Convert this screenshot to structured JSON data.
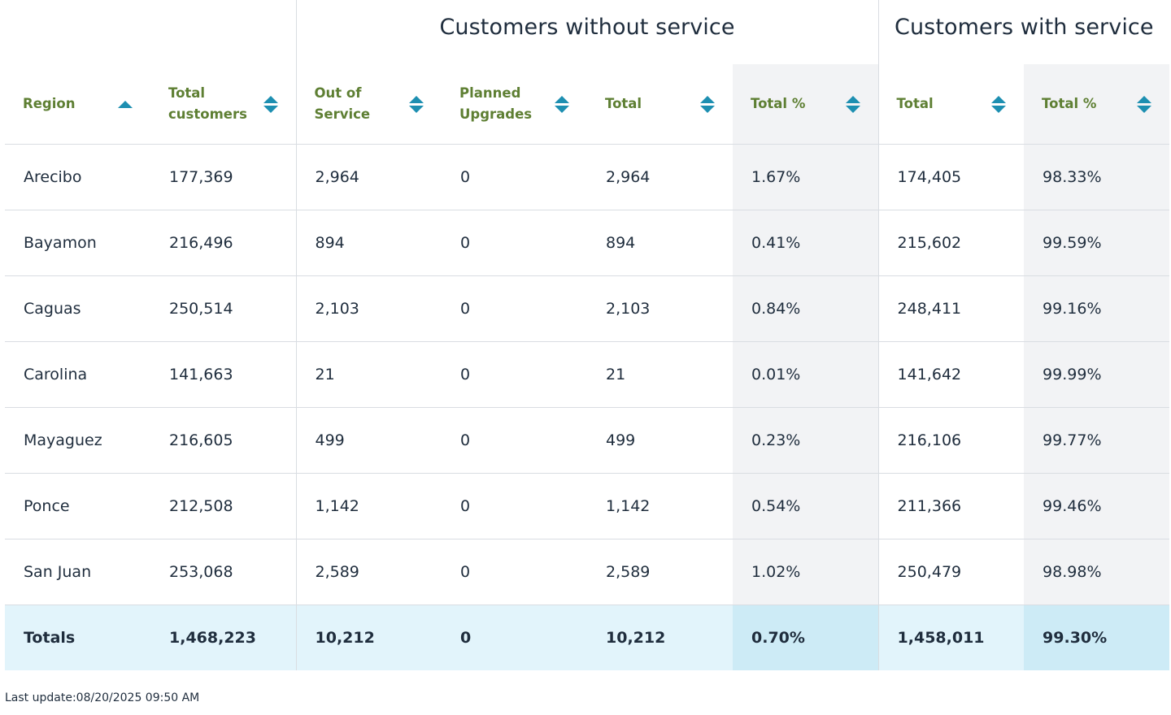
{
  "groups": {
    "without_service": "Customers without service",
    "with_service": "Customers with service"
  },
  "headers": [
    {
      "label": "Region",
      "sort": "asc",
      "sort_icon": "sort-ascending-icon"
    },
    {
      "label": "Total\ncustomers",
      "sort": "both",
      "sort_icon": "sort-both-icon"
    },
    {
      "label": "Out of\nService",
      "sort": "both",
      "sort_icon": "sort-both-icon"
    },
    {
      "label": "Planned\nUpgrades",
      "sort": "both",
      "sort_icon": "sort-both-icon"
    },
    {
      "label": "Total",
      "sort": "both",
      "sort_icon": "sort-both-icon"
    },
    {
      "label": "Total %",
      "sort": "both",
      "sort_icon": "sort-both-icon"
    },
    {
      "label": "Total",
      "sort": "both",
      "sort_icon": "sort-both-icon"
    },
    {
      "label": "Total %",
      "sort": "both",
      "sort_icon": "sort-both-icon"
    }
  ],
  "rows": [
    [
      "Arecibo",
      "177,369",
      "2,964",
      "0",
      "2,964",
      "1.67%",
      "174,405",
      "98.33%"
    ],
    [
      "Bayamon",
      "216,496",
      "894",
      "0",
      "894",
      "0.41%",
      "215,602",
      "99.59%"
    ],
    [
      "Caguas",
      "250,514",
      "2,103",
      "0",
      "2,103",
      "0.84%",
      "248,411",
      "99.16%"
    ],
    [
      "Carolina",
      "141,663",
      "21",
      "0",
      "21",
      "0.01%",
      "141,642",
      "99.99%"
    ],
    [
      "Mayaguez",
      "216,605",
      "499",
      "0",
      "499",
      "0.23%",
      "216,106",
      "99.77%"
    ],
    [
      "Ponce",
      "212,508",
      "1,142",
      "0",
      "1,142",
      "0.54%",
      "211,366",
      "99.46%"
    ],
    [
      "San Juan",
      "253,068",
      "2,589",
      "0",
      "2,589",
      "1.02%",
      "250,479",
      "98.98%"
    ]
  ],
  "totals": [
    "Totals",
    "1,468,223",
    "10,212",
    "0",
    "10,212",
    "0.70%",
    "1,458,011",
    "99.30%"
  ],
  "footer": "Last update:08/20/2025 09:50 AM",
  "colors": {
    "header_text": "#5e7f33",
    "sort_icon": "#1d8fb1",
    "shaded_column": "#f2f3f5",
    "totals_row": "#e2f4fb",
    "totals_shaded": "#cdebf6"
  }
}
